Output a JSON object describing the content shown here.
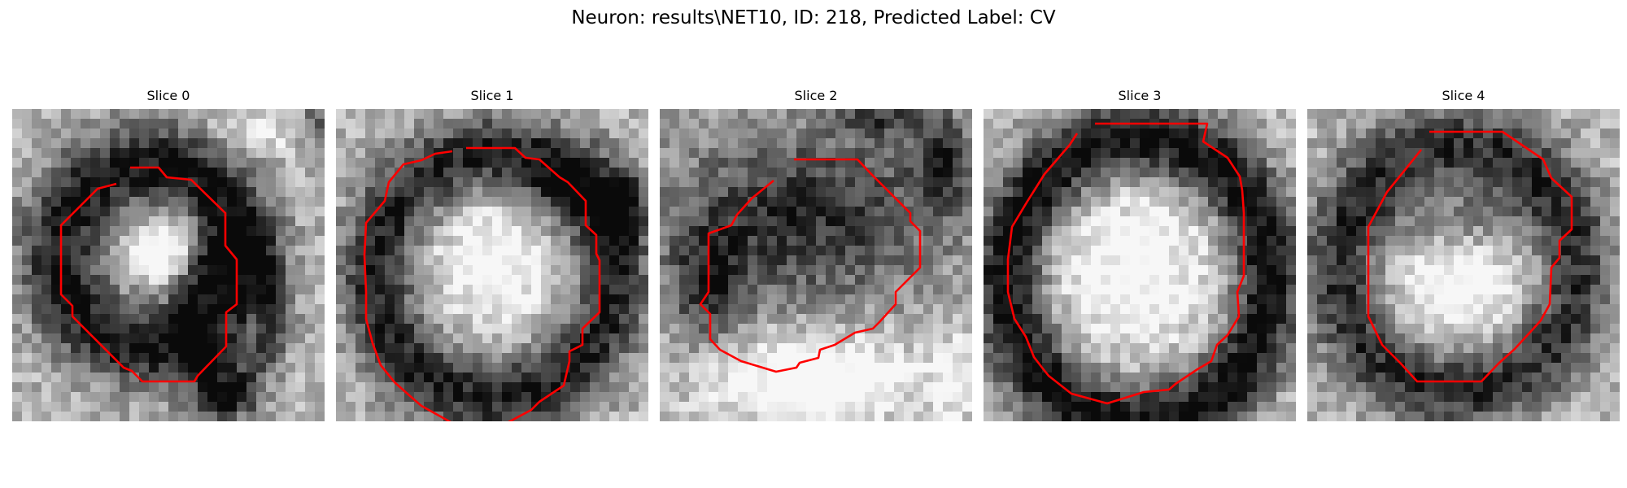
{
  "figure": {
    "title": "Neuron: results\\NET10, ID: 218, Predicted Label: CV"
  },
  "colors": {
    "contour": "#ff0000",
    "background": "#ffffff"
  },
  "panels": [
    {
      "title": "Slice 0",
      "dark_regions": [
        {
          "cx": 170,
          "cy": 180,
          "rx": 110,
          "ry": 110,
          "w": 38,
          "o": 0.65
        },
        {
          "cx": 270,
          "cy": 250,
          "rx": 55,
          "ry": 80,
          "w": 22,
          "o": 0.35
        },
        {
          "cx": 260,
          "cy": 360,
          "rx": 55,
          "ry": 30,
          "w": 0,
          "o": 0.6
        },
        {
          "cx": 380,
          "cy": 20,
          "rx": 40,
          "ry": 40,
          "w": 0,
          "o": 0.35
        }
      ],
      "bright_regions": [
        {
          "cx": 185,
          "cy": 175,
          "rx": 55,
          "ry": 45,
          "o": 0.4
        },
        {
          "cx": 300,
          "cy": 30,
          "rx": 60,
          "ry": 35,
          "o": 0.25
        }
      ],
      "contour": [
        [
          145,
          72
        ],
        [
          180,
          72
        ],
        [
          190,
          84
        ],
        [
          220,
          87
        ],
        [
          262,
          128
        ],
        [
          262,
          168
        ],
        [
          276,
          185
        ],
        [
          276,
          240
        ],
        [
          263,
          250
        ],
        [
          263,
          292
        ],
        [
          228,
          328
        ],
        [
          224,
          335
        ],
        [
          160,
          335
        ],
        [
          147,
          322
        ],
        [
          137,
          318
        ],
        [
          74,
          255
        ],
        [
          74,
          242
        ],
        [
          60,
          228
        ],
        [
          60,
          143
        ],
        [
          105,
          98
        ],
        [
          128,
          92
        ]
      ]
    },
    {
      "title": "Slice 1",
      "dark_regions": [
        {
          "cx": 195,
          "cy": 205,
          "rx": 145,
          "ry": 150,
          "w": 34,
          "o": 0.6
        },
        {
          "cx": 300,
          "cy": 90,
          "rx": 80,
          "ry": 70,
          "w": 0,
          "o": 0.25
        },
        {
          "cx": 355,
          "cy": 120,
          "rx": 30,
          "ry": 60,
          "w": 0,
          "o": 0.5
        }
      ],
      "bright_regions": [
        {
          "cx": 195,
          "cy": 190,
          "rx": 85,
          "ry": 85,
          "o": 0.35
        }
      ],
      "contour": [
        [
          160,
          48
        ],
        [
          220,
          48
        ],
        [
          233,
          60
        ],
        [
          250,
          62
        ],
        [
          275,
          84
        ],
        [
          285,
          90
        ],
        [
          307,
          113
        ],
        [
          307,
          143
        ],
        [
          320,
          155
        ],
        [
          320,
          178
        ],
        [
          324,
          186
        ],
        [
          324,
          250
        ],
        [
          303,
          270
        ],
        [
          303,
          290
        ],
        [
          287,
          298
        ],
        [
          287,
          310
        ],
        [
          280,
          340
        ],
        [
          250,
          360
        ],
        [
          240,
          370
        ],
        [
          212,
          385
        ],
        [
          200,
          398
        ],
        [
          162,
          402
        ],
        [
          150,
          390
        ],
        [
          105,
          365
        ],
        [
          90,
          352
        ],
        [
          72,
          336
        ],
        [
          55,
          315
        ],
        [
          45,
          288
        ],
        [
          37,
          258
        ],
        [
          37,
          225
        ],
        [
          35,
          180
        ],
        [
          37,
          140
        ],
        [
          60,
          113
        ],
        [
          65,
          90
        ],
        [
          83,
          68
        ],
        [
          105,
          63
        ],
        [
          122,
          55
        ],
        [
          143,
          52
        ]
      ]
    },
    {
      "title": "Slice 2",
      "dark_regions": [
        {
          "cx": 180,
          "cy": 130,
          "rx": 230,
          "ry": 140,
          "w": 0,
          "o": 0.55
        },
        {
          "cx": 60,
          "cy": 220,
          "rx": 60,
          "ry": 90,
          "w": 0,
          "o": 0.45
        },
        {
          "cx": 350,
          "cy": 60,
          "rx": 45,
          "ry": 70,
          "w": 0,
          "o": 0.5
        },
        {
          "cx": 270,
          "cy": 10,
          "rx": 60,
          "ry": 30,
          "w": 0,
          "o": 0.4
        }
      ],
      "bright_regions": [
        {
          "cx": 190,
          "cy": 330,
          "rx": 140,
          "ry": 60,
          "o": 0.5
        },
        {
          "cx": 360,
          "cy": 330,
          "rx": 30,
          "ry": 60,
          "o": 0.3
        }
      ],
      "contour": [
        [
          165,
          62
        ],
        [
          243,
          62
        ],
        [
          260,
          80
        ],
        [
          275,
          95
        ],
        [
          308,
          128
        ],
        [
          308,
          138
        ],
        [
          320,
          150
        ],
        [
          320,
          195
        ],
        [
          305,
          210
        ],
        [
          290,
          225
        ],
        [
          290,
          240
        ],
        [
          270,
          262
        ],
        [
          262,
          270
        ],
        [
          240,
          275
        ],
        [
          215,
          290
        ],
        [
          197,
          296
        ],
        [
          195,
          306
        ],
        [
          172,
          312
        ],
        [
          168,
          318
        ],
        [
          143,
          323
        ],
        [
          100,
          310
        ],
        [
          74,
          296
        ],
        [
          62,
          283
        ],
        [
          62,
          252
        ],
        [
          50,
          240
        ],
        [
          60,
          225
        ],
        [
          60,
          153
        ],
        [
          88,
          143
        ],
        [
          95,
          130
        ],
        [
          113,
          110
        ],
        [
          140,
          88
        ]
      ]
    },
    {
      "title": "Slice 3",
      "dark_regions": [
        {
          "cx": 190,
          "cy": 210,
          "rx": 160,
          "ry": 175,
          "w": 34,
          "o": 0.7
        }
      ],
      "bright_regions": [
        {
          "cx": 190,
          "cy": 200,
          "rx": 110,
          "ry": 120,
          "o": 0.35
        }
      ],
      "contour": [
        [
          137,
          18
        ],
        [
          275,
          18
        ],
        [
          270,
          40
        ],
        [
          300,
          60
        ],
        [
          315,
          83
        ],
        [
          318,
          100
        ],
        [
          320,
          128
        ],
        [
          320,
          158
        ],
        [
          320,
          205
        ],
        [
          312,
          225
        ],
        [
          314,
          255
        ],
        [
          300,
          278
        ],
        [
          287,
          290
        ],
        [
          280,
          310
        ],
        [
          263,
          320
        ],
        [
          236,
          338
        ],
        [
          228,
          345
        ],
        [
          197,
          348
        ],
        [
          152,
          362
        ],
        [
          108,
          350
        ],
        [
          80,
          328
        ],
        [
          72,
          318
        ],
        [
          62,
          305
        ],
        [
          52,
          280
        ],
        [
          38,
          258
        ],
        [
          30,
          225
        ],
        [
          30,
          185
        ],
        [
          35,
          145
        ],
        [
          53,
          115
        ],
        [
          75,
          80
        ],
        [
          106,
          44
        ],
        [
          115,
          30
        ]
      ]
    },
    {
      "title": "Slice 4",
      "dark_regions": [
        {
          "cx": 185,
          "cy": 195,
          "rx": 145,
          "ry": 150,
          "w": 36,
          "o": 0.55
        },
        {
          "cx": 180,
          "cy": 135,
          "rx": 120,
          "ry": 45,
          "w": 0,
          "o": 0.25
        }
      ],
      "bright_regions": [
        {
          "cx": 185,
          "cy": 225,
          "rx": 95,
          "ry": 75,
          "o": 0.35
        }
      ],
      "contour": [
        [
          150,
          28
        ],
        [
          240,
          28
        ],
        [
          290,
          62
        ],
        [
          300,
          85
        ],
        [
          325,
          108
        ],
        [
          325,
          148
        ],
        [
          310,
          162
        ],
        [
          310,
          183
        ],
        [
          300,
          195
        ],
        [
          298,
          240
        ],
        [
          287,
          260
        ],
        [
          278,
          270
        ],
        [
          255,
          295
        ],
        [
          235,
          313
        ],
        [
          214,
          335
        ],
        [
          135,
          335
        ],
        [
          115,
          313
        ],
        [
          92,
          290
        ],
        [
          75,
          255
        ],
        [
          75,
          145
        ],
        [
          98,
          102
        ],
        [
          120,
          75
        ],
        [
          140,
          50
        ]
      ]
    }
  ]
}
